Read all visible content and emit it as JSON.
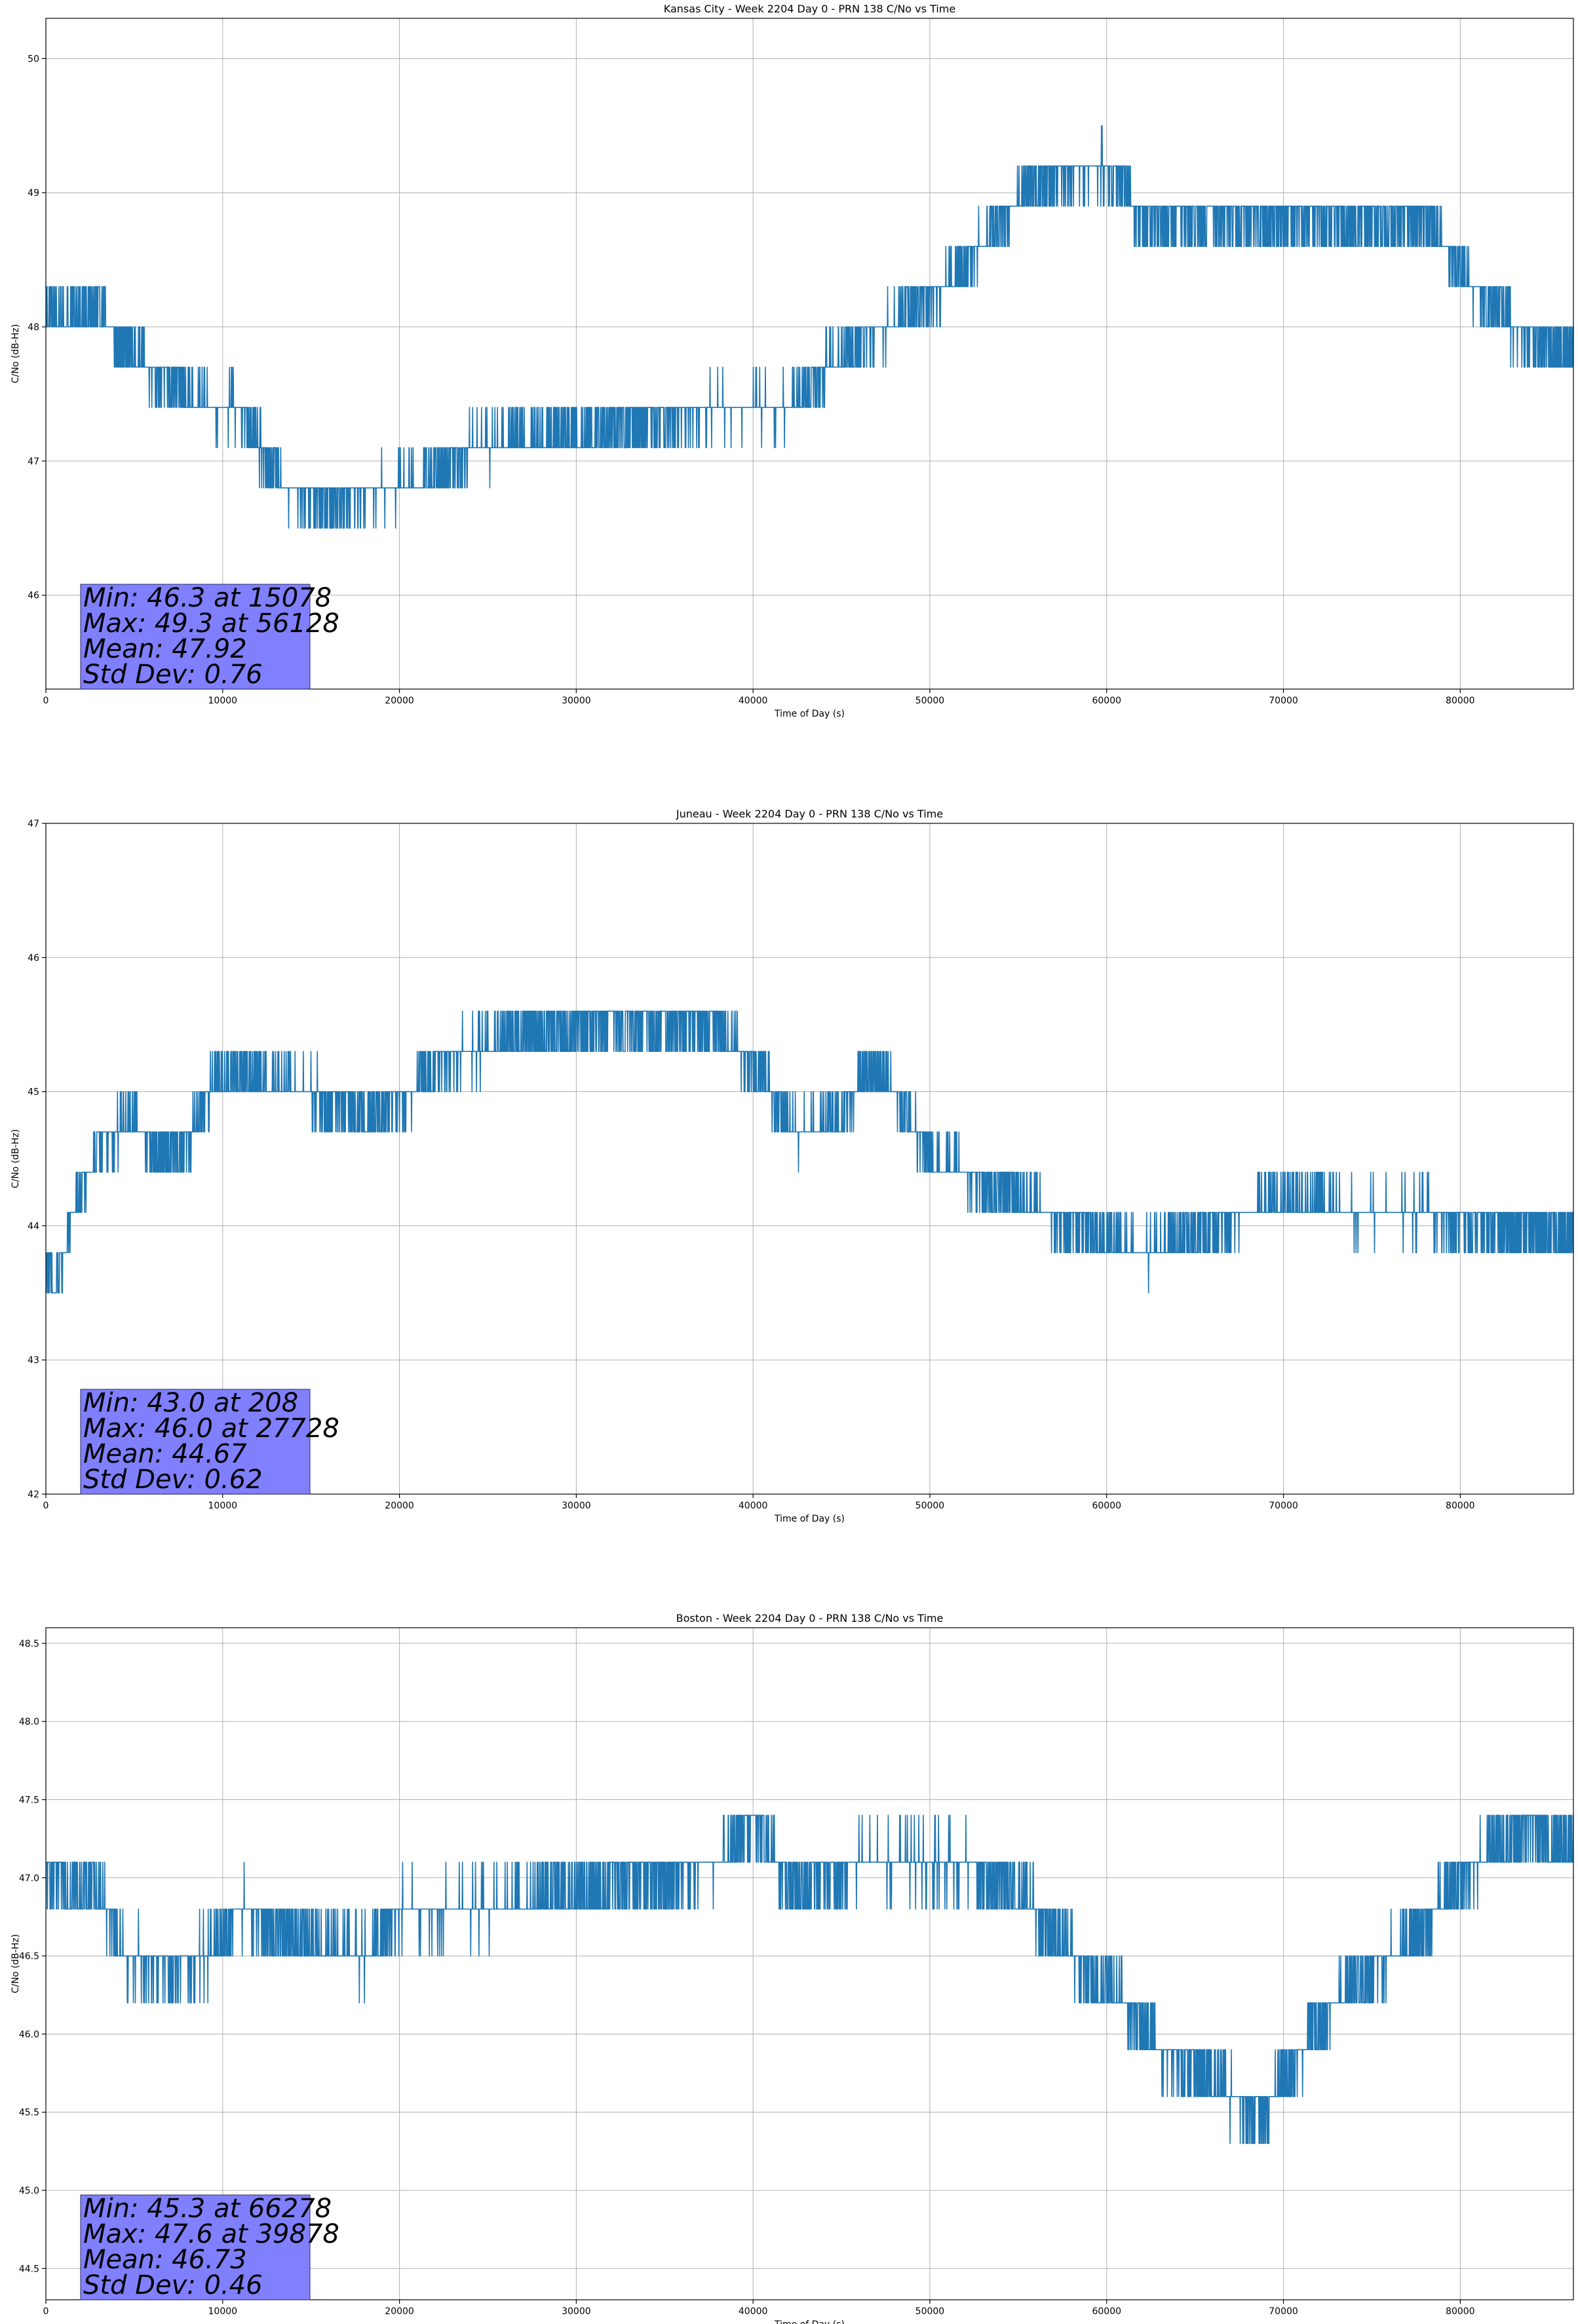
{
  "chart_data": [
    {
      "type": "line",
      "title": "Kansas City - Week 2204 Day 0 - PRN 138 C/No vs Time",
      "xlabel": "Time of Day (s)",
      "ylabel": "C/No (dB-Hz)",
      "xlim": [
        0,
        86400
      ],
      "ylim": [
        45.3,
        50.3
      ],
      "xticks": [
        0,
        10000,
        20000,
        30000,
        40000,
        50000,
        60000,
        70000,
        80000
      ],
      "yticks": [
        46,
        47,
        48,
        49,
        50
      ],
      "ytick_labels": [
        "46",
        "47",
        "48",
        "49",
        "50"
      ],
      "grid": true,
      "color": "#1f77b4",
      "resolution": 0.3,
      "series": [
        {
          "x": [
            0,
            3000,
            5000,
            9000,
            11000,
            12000,
            13500,
            16000,
            19000,
            22000,
            24000,
            30000,
            34000,
            38000,
            42000,
            45000,
            50000,
            51500,
            54000,
            56500,
            60000,
            62000,
            66000,
            70000,
            74000,
            78000,
            80000,
            82000,
            84000,
            86400
          ],
          "y": [
            48.1,
            48.1,
            47.8,
            47.4,
            47.4,
            47.1,
            46.8,
            46.7,
            46.8,
            46.9,
            47.1,
            47.2,
            47.3,
            47.4,
            47.4,
            47.8,
            48.2,
            48.4,
            48.8,
            49.1,
            49.2,
            48.8,
            48.8,
            48.8,
            48.8,
            48.8,
            48.4,
            48.1,
            47.9,
            47.8
          ],
          "spread": [
            0.3,
            0.3,
            0.3,
            0.3,
            0.3,
            0.3,
            0.3,
            0.3,
            0.3,
            0.3,
            0.3,
            0.3,
            0.3,
            0.3,
            0.3,
            0.3,
            0.3,
            0.3,
            0.3,
            0.3,
            0.3,
            0.3,
            0.3,
            0.3,
            0.3,
            0.3,
            0.3,
            0.3,
            0.3,
            0.3
          ]
        }
      ],
      "stats": [
        "Min: 46.3 at 15078",
        "Max: 49.3 at 56128",
        "Mean: 47.92",
        "Std Dev: 0.76"
      ],
      "stats_box_color": "#8080ff"
    },
    {
      "type": "line",
      "title": "Juneau - Week 2204 Day 0 - PRN 138 C/No vs Time",
      "xlabel": "Time of Day (s)",
      "ylabel": "C/No (dB-Hz)",
      "xlim": [
        0,
        86400
      ],
      "ylim": [
        42,
        47
      ],
      "xticks": [
        0,
        10000,
        20000,
        30000,
        40000,
        50000,
        60000,
        70000,
        80000
      ],
      "yticks": [
        42,
        43,
        44,
        45,
        46,
        47
      ],
      "ytick_labels": [
        "42",
        "43",
        "44",
        "45",
        "46",
        "47"
      ],
      "grid": true,
      "color": "#1f77b4",
      "resolution": 0.3,
      "series": [
        {
          "x": [
            0,
            500,
            1500,
            3000,
            5000,
            6500,
            8000,
            9500,
            12000,
            15000,
            18000,
            20000,
            22000,
            26000,
            30000,
            34000,
            38000,
            41000,
            42500,
            45000,
            46500,
            48000,
            50000,
            54000,
            58000,
            62000,
            66000,
            70000,
            74000,
            78000,
            82000,
            86400
          ],
          "y": [
            43.7,
            43.5,
            44.1,
            44.6,
            44.8,
            44.5,
            44.6,
            45.1,
            45.1,
            45.0,
            44.8,
            44.9,
            45.2,
            45.4,
            45.5,
            45.5,
            45.5,
            45.0,
            44.7,
            44.8,
            45.2,
            45.0,
            44.5,
            44.3,
            44.0,
            43.8,
            44.0,
            44.2,
            44.1,
            44.1,
            44.0,
            43.9
          ],
          "spread": [
            0.3,
            0.3,
            0.3,
            0.3,
            0.3,
            0.3,
            0.3,
            0.3,
            0.3,
            0.3,
            0.3,
            0.3,
            0.3,
            0.3,
            0.3,
            0.3,
            0.3,
            0.3,
            0.3,
            0.3,
            0.3,
            0.3,
            0.3,
            0.3,
            0.3,
            0.3,
            0.3,
            0.3,
            0.3,
            0.3,
            0.3,
            0.3
          ]
        }
      ],
      "stats": [
        "Min: 43.0 at 208",
        "Max: 46.0 at 27728",
        "Mean: 44.67",
        "Std Dev: 0.62"
      ],
      "stats_box_color": "#8080ff"
    },
    {
      "type": "line",
      "title": "Boston - Week 2204 Day 0 - PRN 138 C/No vs Time",
      "xlabel": "Time of Day (s)",
      "ylabel": "C/No (dB-Hz)",
      "xlim": [
        0,
        86400
      ],
      "ylim": [
        44.3,
        48.6
      ],
      "xticks": [
        0,
        10000,
        20000,
        30000,
        40000,
        50000,
        60000,
        70000,
        80000
      ],
      "yticks": [
        44.5,
        45.0,
        45.5,
        46.0,
        46.5,
        47.0,
        47.5,
        48.0,
        48.5
      ],
      "ytick_labels": [
        "44.5",
        "45.0",
        "45.5",
        "46.0",
        "46.5",
        "47.0",
        "47.5",
        "48.0",
        "48.5"
      ],
      "grid": true,
      "color": "#1f77b4",
      "resolution": 0.3,
      "series": [
        {
          "x": [
            0,
            3000,
            4500,
            7000,
            9000,
            11000,
            14000,
            18000,
            20000,
            24000,
            30000,
            34000,
            38000,
            40000,
            42000,
            46000,
            52000,
            56000,
            58000,
            61000,
            63000,
            65000,
            67000,
            69000,
            71000,
            73000,
            75000,
            78000,
            80000,
            82000,
            84000,
            86400
          ],
          "y": [
            47.0,
            46.9,
            46.5,
            46.4,
            46.5,
            46.8,
            46.6,
            46.5,
            46.8,
            46.8,
            46.9,
            47.0,
            47.1,
            47.4,
            46.9,
            47.1,
            47.1,
            46.8,
            46.5,
            46.2,
            45.9,
            45.8,
            45.6,
            45.5,
            45.9,
            46.2,
            46.4,
            46.7,
            47.0,
            47.2,
            47.3,
            47.2
          ],
          "spread": [
            0.3,
            0.3,
            0.3,
            0.3,
            0.3,
            0.3,
            0.3,
            0.3,
            0.3,
            0.3,
            0.3,
            0.3,
            0.3,
            0.3,
            0.3,
            0.3,
            0.3,
            0.3,
            0.3,
            0.3,
            0.3,
            0.3,
            0.3,
            0.3,
            0.3,
            0.3,
            0.3,
            0.3,
            0.3,
            0.3,
            0.3,
            0.3
          ]
        }
      ],
      "stats": [
        "Min: 45.3 at 66278",
        "Max: 47.6 at 39878",
        "Mean: 46.73",
        "Std Dev: 0.46"
      ],
      "stats_box_color": "#8080ff"
    }
  ]
}
